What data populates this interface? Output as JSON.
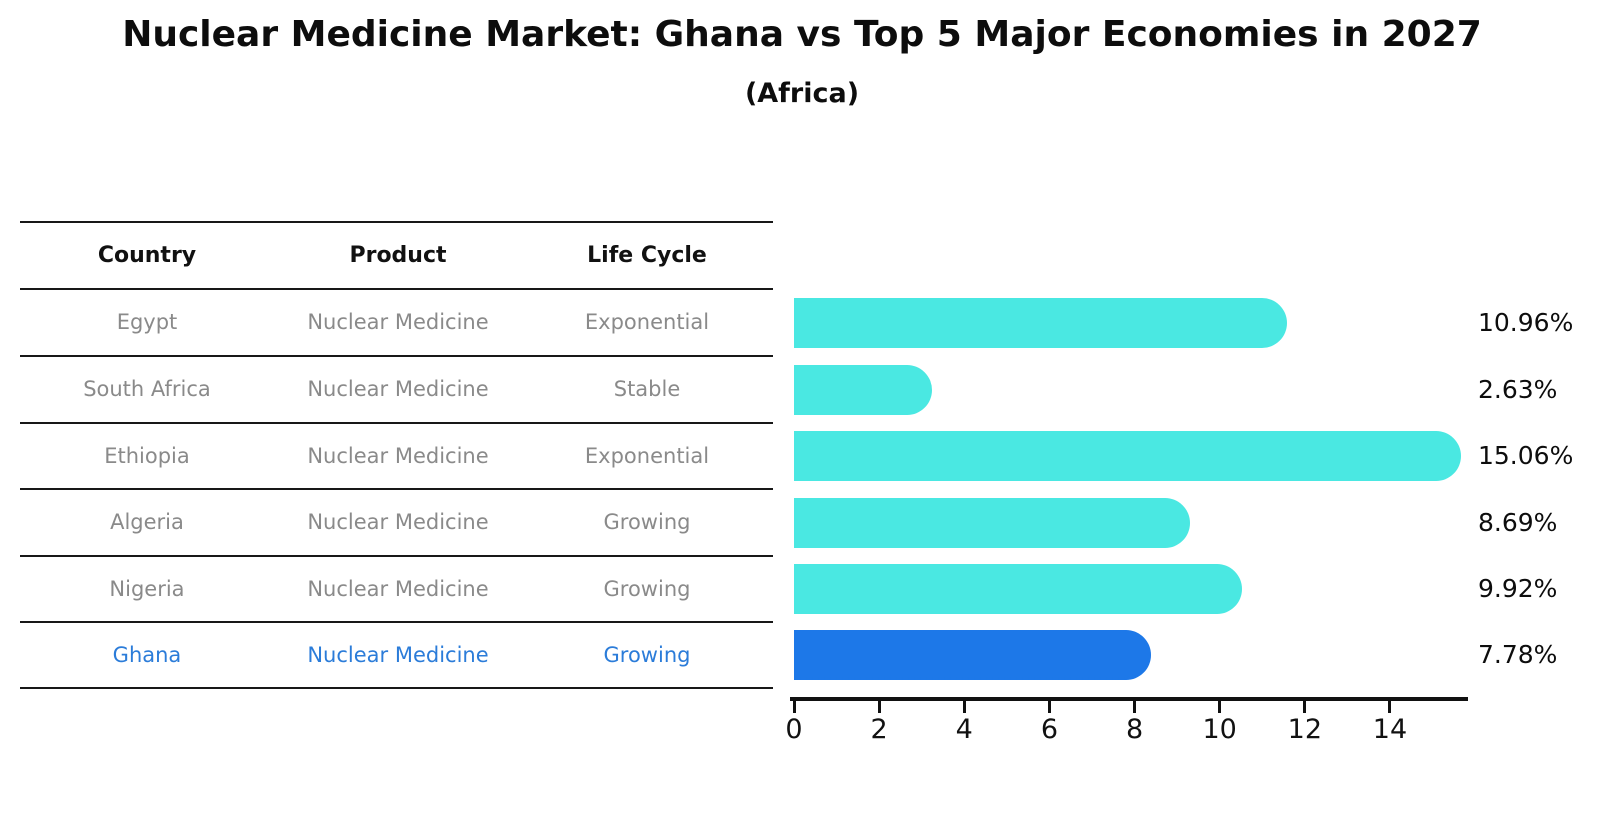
{
  "title": "Nuclear Medicine Market: Ghana vs Top 5 Major Economies in 2027",
  "subtitle": "(Africa)",
  "table": {
    "headers": [
      "Country",
      "Product",
      "Life Cycle"
    ],
    "rows": [
      {
        "country": "Egypt",
        "product": "Nuclear Medicine",
        "life_cycle": "Exponential",
        "highlight": false
      },
      {
        "country": "South Africa",
        "product": "Nuclear Medicine",
        "life_cycle": "Stable",
        "highlight": false
      },
      {
        "country": "Ethiopia",
        "product": "Nuclear Medicine",
        "life_cycle": "Exponential",
        "highlight": false
      },
      {
        "country": "Algeria",
        "product": "Nuclear Medicine",
        "life_cycle": "Growing",
        "highlight": false
      },
      {
        "country": "Nigeria",
        "product": "Nuclear Medicine",
        "life_cycle": "Growing",
        "highlight": false
      },
      {
        "country": "Ghana",
        "product": "Nuclear Medicine",
        "life_cycle": "Growing",
        "highlight": true
      }
    ]
  },
  "chart_data": {
    "type": "bar",
    "orientation": "horizontal",
    "title": "Nuclear Medicine Market: Ghana vs Top 5 Major Economies in 2027 (Africa)",
    "categories": [
      "Egypt",
      "South Africa",
      "Ethiopia",
      "Algeria",
      "Nigeria",
      "Ghana"
    ],
    "values": [
      10.96,
      2.63,
      15.06,
      8.69,
      9.92,
      7.78
    ],
    "value_labels": [
      "10.96%",
      "2.63%",
      "15.06%",
      "8.69%",
      "9.92%",
      "7.78%"
    ],
    "x_ticks": [
      0,
      2,
      4,
      6,
      8,
      10,
      12,
      14
    ],
    "xlim": [
      0,
      15.8
    ],
    "grid": false,
    "legend": "none",
    "value_label_position": "right-of-plot",
    "highlight_index": 5,
    "highlight_style": "dotted-border"
  },
  "colors": {
    "bar": "#4AE8E2",
    "highlight_bar": "#1D78E8",
    "highlight_text": "#2B7CD9",
    "row_text": "#8A8A8A",
    "header_text": "#111111",
    "axis": "#111111"
  }
}
